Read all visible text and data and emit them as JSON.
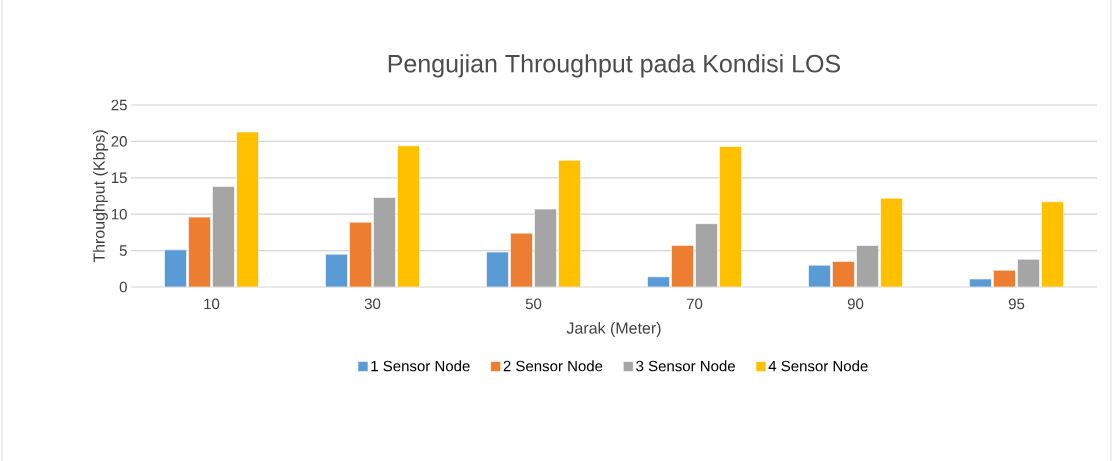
{
  "chart_data": {
    "type": "bar",
    "title": "Pengujian Throughput pada Kondisi LOS",
    "xlabel": "Jarak (Meter)",
    "ylabel": "Throughput (Kbps)",
    "categories": [
      "10",
      "30",
      "50",
      "70",
      "90",
      "95"
    ],
    "series": [
      {
        "name": "1 Sensor Node",
        "color": "#5b9bd5",
        "values": [
          5.1,
          4.5,
          4.8,
          1.4,
          3.0,
          1.1
        ]
      },
      {
        "name": "2 Sensor Node",
        "color": "#ed7d31",
        "values": [
          9.6,
          8.9,
          7.4,
          5.7,
          3.5,
          2.3
        ]
      },
      {
        "name": "3 Sensor Node",
        "color": "#a5a5a5",
        "values": [
          13.8,
          12.3,
          10.7,
          8.7,
          5.7,
          3.8
        ]
      },
      {
        "name": "4 Sensor Node",
        "color": "#ffc000",
        "values": [
          21.3,
          19.4,
          17.4,
          19.3,
          12.2,
          11.7
        ]
      }
    ],
    "ylim": [
      0,
      25
    ],
    "yticks": [
      0,
      5,
      10,
      15,
      20,
      25
    ],
    "grid": "y",
    "legend": "bottom"
  }
}
